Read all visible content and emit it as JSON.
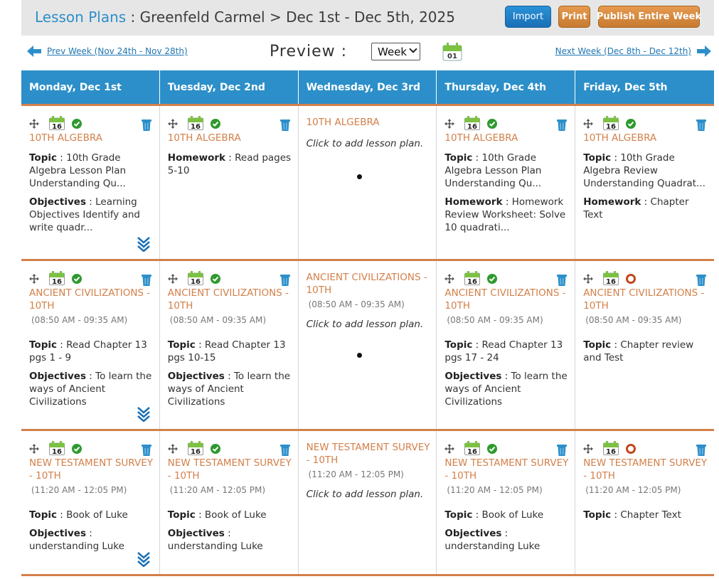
{
  "header": {
    "app_title": "Lesson Plans",
    "separator": " : ",
    "breadcrumb": "Greenfeld Carmel > Dec 1st - Dec 5th, 2025",
    "import_label": "Import",
    "print_label": "Print",
    "publish_label": "Publish Entire Week"
  },
  "nav": {
    "prev_label": "Prev Week (Nov 24th - Nov 28th)",
    "next_label": "Next Week (Dec 8th - Dec 12th)",
    "preview_label": "Preview :",
    "view_selected": "Week",
    "today_day": "01"
  },
  "colors": {
    "accent_blue": "#2c8fc9",
    "accent_orange": "#d3804a",
    "done_green": "#2e9a2e",
    "pending_red": "#c2461b"
  },
  "days": [
    "Monday, Dec 1st",
    "Tuesday, Dec 2nd",
    "Wednesday, Dec 3rd",
    "Thursday, Dec 4th",
    "Friday, Dec 5th"
  ],
  "labels": {
    "topic": "Topic",
    "objectives": "Objectives",
    "homework": "Homework",
    "add_plan": "Click to add lesson plan.",
    "cal_day": "16"
  },
  "rows": [
    {
      "cells": [
        {
          "subject": "10TH ALGEBRA",
          "status": "done",
          "topic": "10th Grade Algebra Lesson Plan Understanding Qu...",
          "objectives": "Learning Objectives Identify and write quadr...",
          "expand": true
        },
        {
          "subject": "10TH ALGEBRA",
          "status": "done",
          "homework": "Read pages 5-10"
        },
        {
          "subject": "10TH ALGEBRA",
          "empty": true
        },
        {
          "subject": "10TH ALGEBRA",
          "status": "done",
          "topic": "10th Grade Algebra Lesson Plan Understanding Qu...",
          "homework": "Homework Review Worksheet: Solve 10 quadrati..."
        },
        {
          "subject": "10TH ALGEBRA",
          "status": "done",
          "topic": "10th Grade Algebra Review Understanding Quadrat...",
          "homework": "Chapter Text"
        }
      ]
    },
    {
      "cells": [
        {
          "subject": "ANCIENT CIVILIZATIONS - 10TH",
          "status": "done",
          "time": "(08:50 AM - 09:35 AM)",
          "topic": "Read Chapter 13 pgs 1 - 9",
          "objectives": "To learn the ways of Ancient Civilizations",
          "expand": true
        },
        {
          "subject": "ANCIENT CIVILIZATIONS - 10TH",
          "status": "done",
          "time": "(08:50 AM - 09:35 AM)",
          "topic": "Read Chapter 13 pgs 10-15",
          "objectives": "To learn the ways of Ancient Civilizations"
        },
        {
          "subject": "ANCIENT CIVILIZATIONS - 10TH",
          "empty": true,
          "time": "(08:50 AM - 09:35 AM)"
        },
        {
          "subject": "ANCIENT CIVILIZATIONS - 10TH",
          "status": "done",
          "time": "(08:50 AM - 09:35 AM)",
          "topic": "Read Chapter 13 pgs 17 - 24",
          "objectives": "To learn the ways of Ancient Civilizations"
        },
        {
          "subject": "ANCIENT CIVILIZATIONS - 10TH",
          "status": "pending",
          "time": "(08:50 AM - 09:35 AM)",
          "topic": "Chapter review and Test"
        }
      ]
    },
    {
      "cells": [
        {
          "subject": "NEW TESTAMENT SURVEY - 10TH",
          "status": "done",
          "time": "(11:20 AM - 12:05 PM)",
          "topic": "Book of Luke",
          "objectives": "understanding Luke",
          "expand": true
        },
        {
          "subject": "NEW TESTAMENT SURVEY - 10TH",
          "status": "done",
          "time": "(11:20 AM - 12:05 PM)",
          "topic": "Book of Luke",
          "objectives": "understanding Luke"
        },
        {
          "subject": "NEW TESTAMENT SURVEY - 10TH",
          "empty": true,
          "time": "(11:20 AM - 12:05 PM)"
        },
        {
          "subject": "NEW TESTAMENT SURVEY - 10TH",
          "status": "done",
          "time": "(11:20 AM - 12:05 PM)",
          "topic": "Book of Luke",
          "objectives": "understanding Luke"
        },
        {
          "subject": "NEW TESTAMENT SURVEY - 10TH",
          "status": "pending",
          "time": "(11:20 AM - 12:05 PM)",
          "topic": "Chapter Text"
        }
      ]
    }
  ]
}
